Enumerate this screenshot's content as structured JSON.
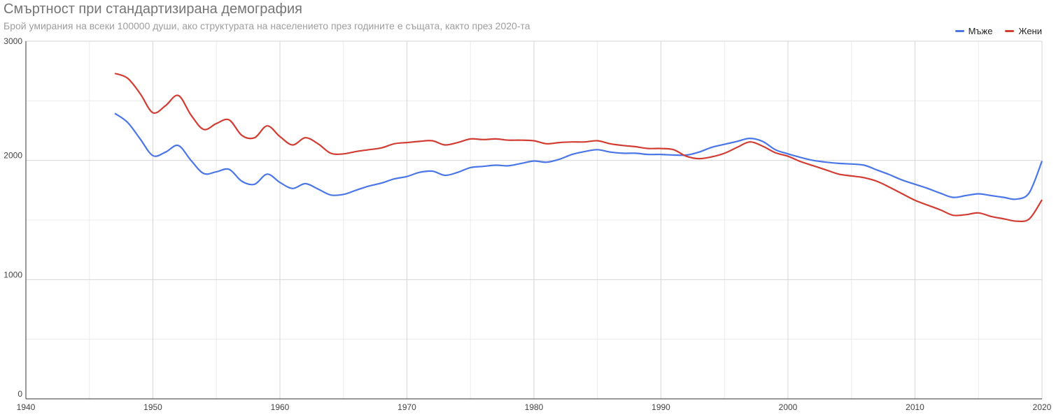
{
  "colors": {
    "men": "#4a76e8",
    "women": "#d23d33",
    "grid": "#d6d6d6",
    "grid_minor": "#ececec",
    "axis": "#333333"
  },
  "chart_data": {
    "type": "line",
    "title": "Смъртност при стандартизирана демография",
    "subtitle": "Брой умирания на всеки 100000 души, ако структурата на населението през годините е същата, както през 2020-та",
    "xlabel": "",
    "ylabel": "",
    "xlim": [
      1940,
      2020
    ],
    "ylim": [
      0,
      3000
    ],
    "x_ticks": [
      1940,
      1950,
      1960,
      1970,
      1980,
      1990,
      2000,
      2010,
      2020
    ],
    "y_ticks": [
      0,
      1000,
      2000,
      3000
    ],
    "grid": true,
    "legend_position": "top-right",
    "x": [
      1947,
      1948,
      1949,
      1950,
      1951,
      1952,
      1953,
      1954,
      1955,
      1956,
      1957,
      1958,
      1959,
      1960,
      1961,
      1962,
      1963,
      1964,
      1965,
      1966,
      1967,
      1968,
      1969,
      1970,
      1971,
      1972,
      1973,
      1974,
      1975,
      1976,
      1977,
      1978,
      1979,
      1980,
      1981,
      1982,
      1983,
      1984,
      1985,
      1986,
      1987,
      1988,
      1989,
      1990,
      1991,
      1992,
      1993,
      1994,
      1995,
      1996,
      1997,
      1998,
      1999,
      2000,
      2001,
      2002,
      2003,
      2004,
      2005,
      2006,
      2007,
      2008,
      2009,
      2010,
      2011,
      2012,
      2013,
      2014,
      2015,
      2016,
      2017,
      2018,
      2019,
      2020
    ],
    "series": [
      {
        "name": "Мъже",
        "values": [
          2395,
          2320,
          2180,
          2040,
          2070,
          2125,
          2000,
          1890,
          1905,
          1925,
          1825,
          1800,
          1885,
          1815,
          1765,
          1805,
          1760,
          1710,
          1715,
          1750,
          1785,
          1810,
          1845,
          1865,
          1900,
          1910,
          1875,
          1900,
          1940,
          1950,
          1960,
          1955,
          1975,
          1995,
          1985,
          2010,
          2050,
          2075,
          2090,
          2070,
          2060,
          2060,
          2050,
          2050,
          2045,
          2045,
          2070,
          2110,
          2135,
          2160,
          2185,
          2160,
          2090,
          2055,
          2025,
          2000,
          1985,
          1975,
          1970,
          1960,
          1920,
          1880,
          1835,
          1800,
          1765,
          1725,
          1690,
          1705,
          1720,
          1705,
          1690,
          1675,
          1730,
          1995
        ]
      },
      {
        "name": "Жени",
        "values": [
          2730,
          2690,
          2560,
          2400,
          2460,
          2545,
          2380,
          2260,
          2310,
          2340,
          2210,
          2190,
          2290,
          2200,
          2130,
          2190,
          2140,
          2060,
          2055,
          2075,
          2090,
          2105,
          2140,
          2150,
          2160,
          2165,
          2130,
          2150,
          2180,
          2175,
          2180,
          2170,
          2170,
          2165,
          2140,
          2150,
          2155,
          2155,
          2165,
          2140,
          2125,
          2115,
          2100,
          2100,
          2090,
          2035,
          2015,
          2030,
          2060,
          2110,
          2155,
          2120,
          2065,
          2035,
          1990,
          1955,
          1920,
          1885,
          1870,
          1855,
          1825,
          1775,
          1720,
          1665,
          1625,
          1585,
          1540,
          1545,
          1560,
          1530,
          1510,
          1490,
          1510,
          1670
        ]
      }
    ]
  }
}
